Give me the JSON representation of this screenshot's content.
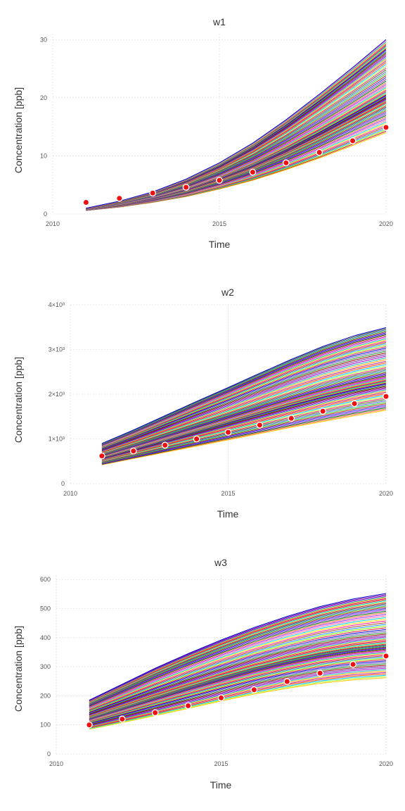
{
  "chart_data": [
    {
      "type": "line",
      "title": "w1",
      "xlabel": "Time",
      "ylabel": "Concentration [ppb]",
      "xlim": [
        2010,
        2020
      ],
      "ylim": [
        0,
        31
      ],
      "x_ticks": [
        2010,
        2015,
        2020
      ],
      "y_ticks": [
        {
          "value": 0,
          "label": "0"
        },
        {
          "value": 10,
          "label": "10"
        },
        {
          "value": 20,
          "label": "20"
        },
        {
          "value": 30,
          "label": "30"
        }
      ],
      "grid": true,
      "observations": {
        "x": [
          2011,
          2012,
          2013,
          2014,
          2015,
          2016,
          2017,
          2018,
          2019,
          2020
        ],
        "y": [
          2.0,
          2.7,
          3.6,
          4.6,
          5.8,
          7.2,
          8.8,
          10.6,
          12.6,
          14.9
        ]
      },
      "ensemble": {
        "x": [
          2011,
          2012,
          2013,
          2014,
          2015,
          2016,
          2017,
          2018,
          2019,
          2020
        ],
        "lower": [
          0.6,
          1.2,
          2.0,
          3.0,
          4.3,
          5.8,
          7.6,
          9.6,
          11.8,
          14.0
        ],
        "upper": [
          1.0,
          2.2,
          3.8,
          6.0,
          8.8,
          12.2,
          16.2,
          20.6,
          25.2,
          30.0
        ],
        "count": 70
      }
    },
    {
      "type": "line",
      "title": "w2",
      "xlabel": "Time",
      "ylabel": "Concentration [ppb]",
      "xlim": [
        2010,
        2020
      ],
      "ylim": [
        0,
        4000
      ],
      "x_ticks": [
        2010,
        2015,
        2020
      ],
      "y_ticks": [
        {
          "value": 0,
          "label": "0"
        },
        {
          "value": 1000,
          "label": "1×10³"
        },
        {
          "value": 2000,
          "label": "2×10³"
        },
        {
          "value": 3000,
          "label": "3×10³"
        },
        {
          "value": 4000,
          "label": "4×10³"
        }
      ],
      "grid": true,
      "observations": {
        "x": [
          2011,
          2012,
          2013,
          2014,
          2015,
          2016,
          2017,
          2018,
          2019,
          2020
        ],
        "y": [
          620,
          730,
          860,
          1000,
          1150,
          1310,
          1460,
          1620,
          1790,
          1950
        ]
      },
      "ensemble": {
        "x": [
          2011,
          2012,
          2013,
          2014,
          2015,
          2016,
          2017,
          2018,
          2019,
          2020
        ],
        "lower": [
          420,
          560,
          700,
          840,
          980,
          1120,
          1260,
          1390,
          1520,
          1640
        ],
        "upper": [
          900,
          1200,
          1520,
          1840,
          2150,
          2470,
          2780,
          3070,
          3310,
          3490
        ],
        "count": 70
      }
    },
    {
      "type": "line",
      "title": "w3",
      "xlabel": "Time",
      "ylabel": "Concentration [ppb]",
      "xlim": [
        2010,
        2020
      ],
      "ylim": [
        0,
        615
      ],
      "x_ticks": [
        2010,
        2015,
        2020
      ],
      "y_ticks": [
        {
          "value": 0,
          "label": "0"
        },
        {
          "value": 100,
          "label": "100"
        },
        {
          "value": 200,
          "label": "200"
        },
        {
          "value": 300,
          "label": "300"
        },
        {
          "value": 400,
          "label": "400"
        },
        {
          "value": 500,
          "label": "500"
        },
        {
          "value": 600,
          "label": "600"
        }
      ],
      "grid": true,
      "observations": {
        "x": [
          2011,
          2012,
          2013,
          2014,
          2015,
          2016,
          2017,
          2018,
          2019,
          2020
        ],
        "y": [
          100,
          120,
          142,
          166,
          193,
          221,
          249,
          278,
          308,
          337
        ]
      },
      "ensemble": {
        "x": [
          2011,
          2012,
          2013,
          2014,
          2015,
          2016,
          2017,
          2018,
          2019,
          2020
        ],
        "lower": [
          85,
          108,
          132,
          157,
          182,
          206,
          226,
          243,
          255,
          262
        ],
        "upper": [
          185,
          240,
          295,
          345,
          392,
          435,
          473,
          507,
          533,
          552
        ],
        "count": 70
      }
    }
  ],
  "palette": [
    "#0000cc",
    "#2a2ae0",
    "#7b1fa2",
    "#a020f0",
    "#c71585",
    "#ff1493",
    "#e91e63",
    "#dc143c",
    "#b22222",
    "#8b0000",
    "#ff6347",
    "#ffa500",
    "#ffd700",
    "#adff2f",
    "#7fff00",
    "#32cd32",
    "#228b22",
    "#006400",
    "#20b2aa",
    "#00ced1",
    "#00bfff",
    "#1e90ff",
    "#4169e1",
    "#6a5acd",
    "#8a2be2",
    "#9400d3",
    "#ff69b4",
    "#ff4500",
    "#a0522d",
    "#556b2f"
  ],
  "colors": {
    "observation": "#ee1111",
    "top_line": "#0000cc",
    "bottom_line": "#ffc800"
  }
}
